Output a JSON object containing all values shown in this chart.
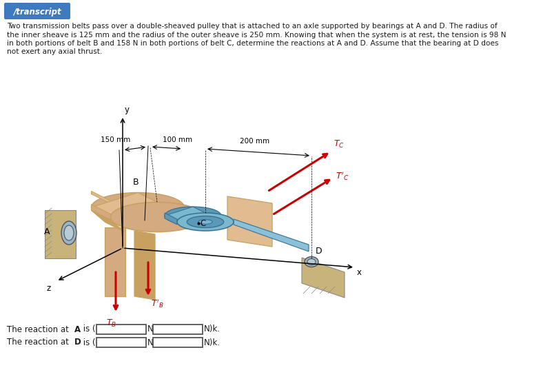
{
  "background_color": "#ffffff",
  "badge_text": "/transcript",
  "badge_bg": "#3d7abf",
  "badge_fg": "#ffffff",
  "paragraph_line1": "Two transmission belts pass over a double-sheaved pulley that is attached to an axle supported by bearings at A and D. The radius of",
  "paragraph_line2": "the inner sheave is 125 mm and the radius of the outer sheave is 250 mm. Knowing that when the system is at rest, the tension is 98 N",
  "paragraph_line3": "in both portions of belt B and 158 N in both portions of belt C, determine the reactions at A and D. Assume that the bearing at D does",
  "paragraph_line4": "not exert any axial thrust.",
  "dim_150": "150 mm",
  "dim_100": "100 mm",
  "dim_200": "200 mm",
  "arrow_color": "#cc0000",
  "text_color": "#1a1a1a",
  "pulley_outer_light": "#e0bc90",
  "pulley_outer_mid": "#d4aa80",
  "pulley_outer_dark": "#c8a060",
  "pulley_inner_light": "#7ab8d0",
  "pulley_inner_mid": "#5a9ab8",
  "pulley_inner_dark": "#3a7090",
  "axle_color": "#8ac0d8",
  "support_color": "#c8b47a",
  "bearing_color": "#9ab5c8"
}
